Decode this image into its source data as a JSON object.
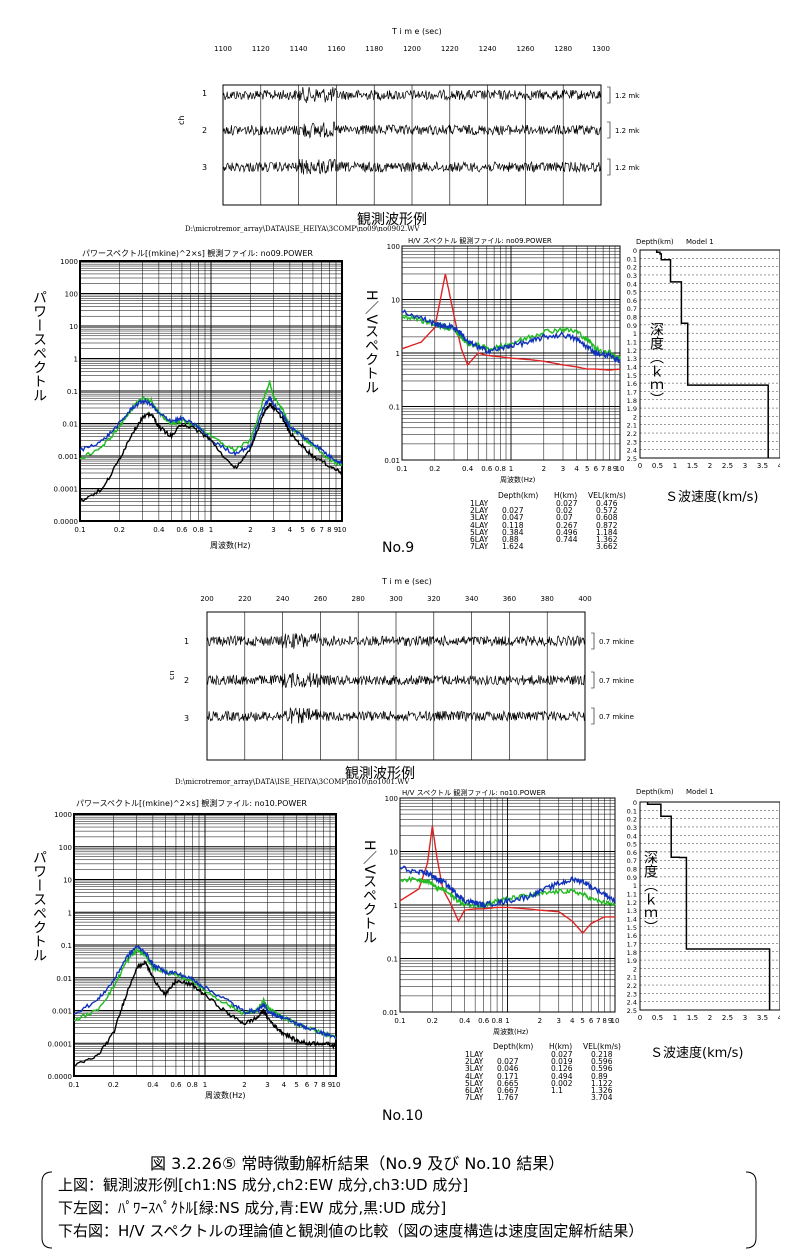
{
  "no9": {
    "waveform": {
      "time_label": "T i m e (sec)",
      "ticks": [
        "1100",
        "1120",
        "1140",
        "1160",
        "1180",
        "1200",
        "1220",
        "1240",
        "1260",
        "1280",
        "1300"
      ],
      "ch_axis": "ch",
      "channels": [
        "1",
        "2",
        "3"
      ],
      "amplitudes": [
        "1.2  mkine",
        "1.2  mkine",
        "1.2  mkine"
      ],
      "caption": "観測波形例",
      "path": "D:\\microtremor_array\\DATA\\ISE_HEIYA\\3COMP\\no09\\no0902.WV"
    },
    "power": {
      "title": "パワースペクトル[(mkine)^2×s]  観測ファイル:  no09.POWER",
      "ylabel": "パワースペクトル",
      "xlabel": "周波数(Hz)",
      "yticks": [
        "1000",
        "100",
        "10",
        "1",
        "0.1",
        "0.01",
        "0.001",
        "0.0001",
        "0.0000"
      ],
      "xticks": [
        "0.1",
        "0.2",
        "0.4",
        "0.6",
        "0.8",
        "1",
        "2",
        "3",
        "4",
        "5",
        "6",
        "7",
        "8",
        "9",
        "10"
      ]
    },
    "hv": {
      "title": "H/V スペクトル 観測ファイル:  no09.POWER",
      "ylabel": "H／Vスペクトル",
      "xlabel": "周波数(Hz)",
      "yticks": [
        "100",
        "10",
        "1",
        "0.1",
        "0.01"
      ],
      "xticks": [
        "0.1",
        "0.2",
        "0.4",
        "0.6",
        "0.8",
        "1",
        "2",
        "3",
        "4",
        "5",
        "6",
        "7",
        "8",
        "9",
        "10"
      ]
    },
    "model": {
      "header_depth": "Depth(km)",
      "header_model": "Model 1",
      "depth_label": "深度（ｋｍ）",
      "xlabel": "Ｓ波速度(km/s)",
      "yticks": [
        "0",
        "0.1",
        "0.2",
        "0.3",
        "0.4",
        "0.5",
        "0.6",
        "0.7",
        "0.8",
        "0.9",
        "1",
        "1.1",
        "1.2",
        "1.3",
        "1.4",
        "1.5",
        "1.6",
        "1.7",
        "1.8",
        "1.9",
        "2",
        "2.1",
        "2.2",
        "2.3",
        "2.4",
        "2.5"
      ],
      "xticks": [
        "0",
        "0.5",
        "1",
        "1.5",
        "2",
        "2.5",
        "3",
        "3.5",
        "4"
      ]
    },
    "table": {
      "headers": [
        "Depth(km)",
        "H(km)",
        "VEL(km/s)"
      ],
      "rows": [
        [
          "1LAY",
          "",
          "0.027",
          "0.476"
        ],
        [
          "2LAY",
          "0.027",
          "0.02",
          "0.572"
        ],
        [
          "3LAY",
          "0.047",
          "0.07",
          "0.608"
        ],
        [
          "4LAY",
          "0.118",
          "0.267",
          "0.872"
        ],
        [
          "5LAY",
          "0.384",
          "0.496",
          "1.184"
        ],
        [
          "6LAY",
          "0.88",
          "0.744",
          "1.362"
        ],
        [
          "7LAY",
          "1.624",
          "",
          "3.662"
        ]
      ]
    },
    "label": "No.9"
  },
  "no10": {
    "waveform": {
      "time_label": "T i m e (sec)",
      "ticks": [
        "200",
        "220",
        "240",
        "260",
        "280",
        "300",
        "320",
        "340",
        "360",
        "380",
        "400"
      ],
      "ch_axis": "ch",
      "channels": [
        "1",
        "2",
        "3"
      ],
      "amplitudes": [
        "0.7  mkine",
        "0.7  mkine",
        "0.7  mkine"
      ],
      "caption": "観測波形例",
      "path": "D:\\microtremor_array\\DATA\\ISE_HEIYA\\3COMP\\no10\\no1001.WV"
    },
    "power": {
      "title": "パワースペクトル[(mkine)^2×s]  観測ファイル:  no10.POWER",
      "ylabel": "パワースペクトル",
      "xlabel": "周波数(Hz)",
      "yticks": [
        "1000",
        "100",
        "10",
        "1",
        "0.1",
        "0.01",
        "0.001",
        "0.0001",
        "0.0000"
      ],
      "xticks": [
        "0.1",
        "0.2",
        "0.4",
        "0.6",
        "0.8",
        "1",
        "2",
        "3",
        "4",
        "5",
        "6",
        "7",
        "8",
        "9",
        "10"
      ]
    },
    "hv": {
      "title": "H/V スペクトル 観測ファイル:  no10.POWER",
      "ylabel": "H／Vスペクトル",
      "xlabel": "周波数(Hz)",
      "yticks": [
        "100",
        "10",
        "1",
        "0.1",
        "0.01"
      ],
      "xticks": [
        "0.1",
        "0.2",
        "0.4",
        "0.6",
        "0.8",
        "1",
        "2",
        "3",
        "4",
        "5",
        "6",
        "7",
        "8",
        "9",
        "10"
      ]
    },
    "model": {
      "header_depth": "Depth(km)",
      "header_model": "Model 1",
      "depth_label": "深度（ｋｍ）",
      "xlabel": "Ｓ波速度(km/s)",
      "yticks": [
        "0",
        "0.1",
        "0.2",
        "0.3",
        "0.4",
        "0.5",
        "0.6",
        "0.7",
        "0.8",
        "0.9",
        "1",
        "1.1",
        "1.2",
        "1.3",
        "1.4",
        "1.5",
        "1.6",
        "1.7",
        "1.8",
        "1.9",
        "2",
        "2.1",
        "2.2",
        "2.3",
        "2.4",
        "2.5"
      ],
      "xticks": [
        "0",
        "0.5",
        "1",
        "1.5",
        "2",
        "2.5",
        "3",
        "3.5",
        "4"
      ]
    },
    "table": {
      "headers": [
        "Depth(km)",
        "H(km)",
        "VEL(km/s)"
      ],
      "rows": [
        [
          "1LAY",
          "",
          "0.027",
          "0.218"
        ],
        [
          "2LAY",
          "0.027",
          "0.019",
          "0.596"
        ],
        [
          "3LAY",
          "0.046",
          "0.126",
          "0.596"
        ],
        [
          "4LAY",
          "0.171",
          "0.494",
          "0.89"
        ],
        [
          "5LAY",
          "0.665",
          "0.002",
          "1.122"
        ],
        [
          "6LAY",
          "0.667",
          "1.1",
          "1.326"
        ],
        [
          "7LAY",
          "1.767",
          "",
          "3.704"
        ]
      ]
    },
    "label": "No.10"
  },
  "caption": {
    "figure_title": "図 3.2.26⑤  常時微動解析結果（No.9 及び No.10 結果）",
    "lines": [
      "上図：観測波形例[ch1:NS 成分,ch2:EW 成分,ch3:UD 成分]",
      "下左図：ﾊﾟﾜｰｽﾍﾟｸﾄﾙ[緑:NS 成分,青:EW 成分,黒:UD 成分]",
      "下右図：H/V スペクトルの理論値と観測値の比較（図の速度構造は速度固定解析結果）"
    ]
  },
  "colors": {
    "ns": "#22bb22",
    "ew": "#1133bb",
    "ud": "#000000",
    "theory": "#dd2222"
  },
  "chart_data": [
    {
      "type": "line",
      "title": "パワースペクトル[(mkine)^2×s]  観測ファイル:  no09.POWER",
      "xlabel": "周波数(Hz)",
      "ylabel": "パワースペクトル",
      "xscale": "log",
      "yscale": "log",
      "xlim": [
        0.1,
        10
      ],
      "ylim": [
        1e-05,
        1000
      ],
      "x": [
        0.1,
        0.15,
        0.2,
        0.25,
        0.3,
        0.35,
        0.4,
        0.5,
        0.6,
        0.8,
        1,
        1.5,
        2,
        2.5,
        2.8,
        3,
        3.5,
        4,
        5,
        6,
        8,
        10
      ],
      "series": [
        {
          "name": "NS",
          "values": [
            0.0008,
            0.002,
            0.008,
            0.03,
            0.06,
            0.05,
            0.02,
            0.01,
            0.012,
            0.008,
            0.004,
            0.0015,
            0.003,
            0.05,
            0.2,
            0.06,
            0.03,
            0.008,
            0.004,
            0.002,
            0.0008,
            0.0005
          ]
        },
        {
          "name": "EW",
          "values": [
            0.0015,
            0.003,
            0.01,
            0.03,
            0.05,
            0.04,
            0.02,
            0.012,
            0.014,
            0.008,
            0.003,
            0.0012,
            0.002,
            0.03,
            0.06,
            0.04,
            0.02,
            0.008,
            0.004,
            0.0025,
            0.001,
            0.0006
          ]
        },
        {
          "name": "UD",
          "values": [
            4e-05,
            0.0001,
            0.0008,
            0.005,
            0.015,
            0.02,
            0.008,
            0.004,
            0.01,
            0.006,
            0.003,
            0.0004,
            0.0015,
            0.02,
            0.04,
            0.03,
            0.015,
            0.005,
            0.002,
            0.001,
            0.0005,
            0.0003
          ]
        }
      ]
    },
    {
      "type": "line",
      "title": "H/V スペクトル 観測ファイル:  no09.POWER",
      "xlabel": "周波数(Hz)",
      "ylabel": "H／Vスペクトル",
      "xscale": "log",
      "yscale": "log",
      "xlim": [
        0.1,
        10
      ],
      "ylim": [
        0.01,
        100
      ],
      "x": [
        0.1,
        0.15,
        0.2,
        0.22,
        0.25,
        0.3,
        0.35,
        0.4,
        0.5,
        0.6,
        0.8,
        1,
        1.5,
        2,
        3,
        4,
        5,
        6,
        8,
        10
      ],
      "series": [
        {
          "name": "theory",
          "values": [
            1.2,
            1.6,
            3,
            8,
            30,
            5,
            1.2,
            0.6,
            1,
            0.9,
            0.85,
            0.8,
            0.75,
            0.7,
            0.6,
            0.55,
            0.5,
            0.5,
            0.48,
            0.5
          ]
        },
        {
          "name": "observed-ns",
          "values": [
            5,
            4,
            3.5,
            3.2,
            3,
            2.8,
            2,
            1.5,
            1.4,
            1.2,
            1.3,
            1.5,
            2,
            2.5,
            2.8,
            2.5,
            1.8,
            1.2,
            1,
            0.8
          ]
        },
        {
          "name": "observed-ew",
          "values": [
            6,
            4.5,
            3.5,
            3.3,
            3.2,
            3,
            2.3,
            1.6,
            1.3,
            1.1,
            1.2,
            1.4,
            1.6,
            2,
            2.2,
            1.8,
            1.3,
            1,
            0.9,
            0.7
          ]
        }
      ]
    },
    {
      "type": "line",
      "title": "パワースペクトル[(mkine)^2×s]  観測ファイル:  no10.POWER",
      "xlabel": "周波数(Hz)",
      "ylabel": "パワースペクトル",
      "xscale": "log",
      "yscale": "log",
      "xlim": [
        0.1,
        10
      ],
      "ylim": [
        1e-05,
        1000
      ],
      "x": [
        0.1,
        0.15,
        0.2,
        0.25,
        0.3,
        0.35,
        0.4,
        0.5,
        0.6,
        0.8,
        1,
        1.5,
        2,
        2.5,
        2.8,
        3,
        3.5,
        4,
        5,
        6,
        8,
        10
      ],
      "series": [
        {
          "name": "NS",
          "values": [
            0.0005,
            0.001,
            0.005,
            0.03,
            0.07,
            0.05,
            0.02,
            0.015,
            0.012,
            0.008,
            0.004,
            0.0015,
            0.0008,
            0.001,
            0.002,
            0.0012,
            0.0008,
            0.0006,
            0.0004,
            0.0003,
            0.0002,
            0.00015
          ]
        },
        {
          "name": "EW",
          "values": [
            0.0008,
            0.002,
            0.008,
            0.04,
            0.09,
            0.06,
            0.025,
            0.015,
            0.014,
            0.009,
            0.005,
            0.002,
            0.0009,
            0.001,
            0.0015,
            0.001,
            0.0007,
            0.0006,
            0.0004,
            0.0003,
            0.0002,
            0.00015
          ]
        },
        {
          "name": "UD",
          "values": [
            2e-05,
            4e-05,
            0.0002,
            0.003,
            0.02,
            0.03,
            0.01,
            0.003,
            0.008,
            0.006,
            0.003,
            0.0008,
            0.0004,
            0.0006,
            0.001,
            0.0006,
            0.0003,
            0.0002,
            0.00012,
            0.0001,
            0.0001,
            8e-05
          ]
        }
      ]
    },
    {
      "type": "line",
      "title": "H/V スペクトル 観測ファイル:  no10.POWER",
      "xlabel": "周波数(Hz)",
      "ylabel": "H／Vスペクトル",
      "xscale": "log",
      "yscale": "log",
      "xlim": [
        0.1,
        10
      ],
      "ylim": [
        0.01,
        100
      ],
      "x": [
        0.1,
        0.15,
        0.18,
        0.2,
        0.22,
        0.25,
        0.3,
        0.35,
        0.4,
        0.5,
        0.6,
        0.8,
        1,
        1.5,
        2,
        3,
        4,
        5,
        6,
        8,
        10
      ],
      "series": [
        {
          "name": "theory",
          "values": [
            1.2,
            2,
            6,
            30,
            8,
            2,
            1,
            0.5,
            0.8,
            0.85,
            0.85,
            0.9,
            0.9,
            0.85,
            0.8,
            0.75,
            0.5,
            0.3,
            0.45,
            0.6,
            0.6
          ]
        },
        {
          "name": "observed-ns",
          "values": [
            3,
            3,
            2.8,
            2.5,
            2,
            2,
            1.5,
            1.2,
            1,
            1,
            1,
            1.2,
            1.3,
            1.5,
            1.6,
            1.8,
            1.8,
            1.6,
            1.3,
            1.1,
            1
          ]
        },
        {
          "name": "observed-ew",
          "values": [
            5,
            4,
            4,
            3.5,
            3,
            2.8,
            2,
            1.5,
            1.2,
            1.1,
            1,
            1.1,
            1.2,
            1.4,
            1.8,
            2.5,
            3,
            2.8,
            2.2,
            1.6,
            1.2
          ]
        }
      ]
    },
    {
      "type": "line",
      "title": "",
      "xlabel": "Ｓ波速度(km/s)",
      "ylabel": "深度（ｋｍ）",
      "xlim": [
        0,
        4
      ],
      "ylim": [
        0,
        2.5
      ],
      "x": [
        0.476,
        0.476,
        0.572,
        0.572,
        0.608,
        0.608,
        0.872,
        0.872,
        1.184,
        1.184,
        1.362,
        1.362,
        3.662,
        3.662
      ],
      "values": [
        0,
        0.027,
        0.027,
        0.047,
        0.047,
        0.118,
        0.118,
        0.384,
        0.384,
        0.88,
        0.88,
        1.624,
        1.624,
        2.5
      ]
    },
    {
      "type": "line",
      "title": "",
      "xlabel": "Ｓ波速度(km/s)",
      "ylabel": "深度（ｋｍ）",
      "xlim": [
        0,
        4
      ],
      "ylim": [
        0,
        2.5
      ],
      "x": [
        0.218,
        0.218,
        0.596,
        0.596,
        0.596,
        0.596,
        0.89,
        0.89,
        1.122,
        1.122,
        1.326,
        1.326,
        3.704,
        3.704
      ],
      "values": [
        0,
        0.027,
        0.027,
        0.046,
        0.046,
        0.171,
        0.171,
        0.665,
        0.665,
        0.667,
        0.667,
        1.767,
        1.767,
        2.5
      ]
    }
  ]
}
